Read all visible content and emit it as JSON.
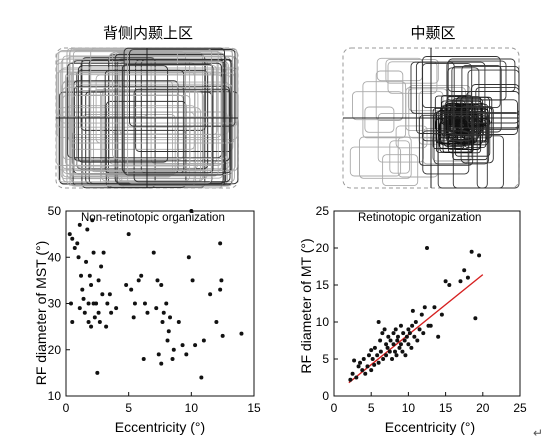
{
  "panels": {
    "dorsal_title": "背侧内颞上区",
    "mt_title": "中颞区",
    "return_mark": "↵"
  },
  "chart_data": [
    {
      "type": "scatter",
      "annotation": "Non-retinotopic organization",
      "xlabel": "Eccentricity (°)",
      "ylabel": "RF diameter of MST (°)",
      "xlim": [
        0,
        15
      ],
      "ylim": [
        10,
        50
      ],
      "xticks": [
        "0",
        "5",
        "10",
        "15"
      ],
      "yticks": [
        "10",
        "20",
        "30",
        "40",
        "50"
      ],
      "points": [
        [
          0.3,
          45
        ],
        [
          0.5,
          44
        ],
        [
          0.7,
          42
        ],
        [
          0.4,
          30
        ],
        [
          0.5,
          26
        ],
        [
          0.9,
          43
        ],
        [
          1.0,
          40
        ],
        [
          1.1,
          29
        ],
        [
          1.1,
          47
        ],
        [
          1.2,
          36
        ],
        [
          1.3,
          33
        ],
        [
          1.4,
          31
        ],
        [
          1.5,
          28
        ],
        [
          1.6,
          39
        ],
        [
          1.7,
          46
        ],
        [
          1.8,
          30
        ],
        [
          1.8,
          26
        ],
        [
          1.9,
          36
        ],
        [
          2.0,
          34
        ],
        [
          2.0,
          25
        ],
        [
          2.1,
          48
        ],
        [
          2.2,
          30
        ],
        [
          2.2,
          41
        ],
        [
          2.3,
          27
        ],
        [
          2.4,
          30
        ],
        [
          2.5,
          15
        ],
        [
          2.6,
          35
        ],
        [
          2.6,
          28
        ],
        [
          2.7,
          26
        ],
        [
          2.8,
          38
        ],
        [
          2.9,
          32
        ],
        [
          3.0,
          41
        ],
        [
          3.2,
          25
        ],
        [
          3.3,
          30
        ],
        [
          3.5,
          32
        ],
        [
          3.6,
          28
        ],
        [
          4.0,
          29
        ],
        [
          4.8,
          34
        ],
        [
          5.0,
          45
        ],
        [
          5.2,
          33
        ],
        [
          5.4,
          27
        ],
        [
          5.5,
          30
        ],
        [
          5.8,
          35
        ],
        [
          6.0,
          36
        ],
        [
          6.2,
          18
        ],
        [
          6.3,
          30
        ],
        [
          6.5,
          28
        ],
        [
          7.0,
          41
        ],
        [
          7.2,
          29
        ],
        [
          7.3,
          35
        ],
        [
          7.4,
          19
        ],
        [
          7.6,
          34
        ],
        [
          7.6,
          17
        ],
        [
          7.7,
          26
        ],
        [
          7.8,
          28
        ],
        [
          8.0,
          30
        ],
        [
          8.1,
          22
        ],
        [
          8.2,
          24
        ],
        [
          8.3,
          27
        ],
        [
          8.5,
          18
        ],
        [
          8.6,
          20
        ],
        [
          9.0,
          26
        ],
        [
          9.3,
          21
        ],
        [
          9.6,
          19
        ],
        [
          9.8,
          40
        ],
        [
          10.0,
          50
        ],
        [
          10.1,
          35
        ],
        [
          10.3,
          21
        ],
        [
          10.8,
          14
        ],
        [
          11.0,
          22
        ],
        [
          11.5,
          32
        ],
        [
          12.0,
          26
        ],
        [
          12.3,
          33
        ],
        [
          12.3,
          43
        ],
        [
          12.4,
          35
        ],
        [
          12.5,
          23
        ],
        [
          14.0,
          23.5
        ]
      ]
    },
    {
      "type": "scatter",
      "annotation": "Retinotopic organization",
      "xlabel": "Eccentricity (°)",
      "ylabel": "RF diameter of MT (°)",
      "xlim": [
        0,
        25
      ],
      "ylim": [
        0,
        25
      ],
      "xticks": [
        "0",
        "5",
        "10",
        "15",
        "20",
        "25"
      ],
      "yticks": [
        "0",
        "5",
        "10",
        "15",
        "20",
        "25"
      ],
      "regression": {
        "x": [
          2,
          20
        ],
        "y": [
          1.8,
          16.4
        ],
        "color": "#d62020"
      },
      "points": [
        [
          2.2,
          2.2
        ],
        [
          2.5,
          3.0
        ],
        [
          2.7,
          4.8
        ],
        [
          3.0,
          2.5
        ],
        [
          3.3,
          4.0
        ],
        [
          3.5,
          4.5
        ],
        [
          3.8,
          3.5
        ],
        [
          4.0,
          5.0
        ],
        [
          4.2,
          3.0
        ],
        [
          4.5,
          4.0
        ],
        [
          4.7,
          5.5
        ],
        [
          5.0,
          3.5
        ],
        [
          5.0,
          6.2
        ],
        [
          5.2,
          5.0
        ],
        [
          5.4,
          4.2
        ],
        [
          5.5,
          6.5
        ],
        [
          5.8,
          5.5
        ],
        [
          6.0,
          10.0
        ],
        [
          6.0,
          4.5
        ],
        [
          6.2,
          7.5
        ],
        [
          6.3,
          6.0
        ],
        [
          6.5,
          8.5
        ],
        [
          6.6,
          5.0
        ],
        [
          6.8,
          9.0
        ],
        [
          7.0,
          7.0
        ],
        [
          7.0,
          5.5
        ],
        [
          7.2,
          6.5
        ],
        [
          7.3,
          8.0
        ],
        [
          7.5,
          6.0
        ],
        [
          7.6,
          7.5
        ],
        [
          7.8,
          5.0
        ],
        [
          8.0,
          8.5
        ],
        [
          8.0,
          7.0
        ],
        [
          8.2,
          6.0
        ],
        [
          8.3,
          9.0
        ],
        [
          8.4,
          5.5
        ],
        [
          8.5,
          7.5
        ],
        [
          8.6,
          8.0
        ],
        [
          8.8,
          6.5
        ],
        [
          9.0,
          9.5
        ],
        [
          9.0,
          7.0
        ],
        [
          9.2,
          6.0
        ],
        [
          9.3,
          8.5
        ],
        [
          9.5,
          7.5
        ],
        [
          9.6,
          5.5
        ],
        [
          9.8,
          8.0
        ],
        [
          10.0,
          9.0
        ],
        [
          10.0,
          7.0
        ],
        [
          10.2,
          8.5
        ],
        [
          10.4,
          6.5
        ],
        [
          10.5,
          9.5
        ],
        [
          10.6,
          11.5
        ],
        [
          10.8,
          8.0
        ],
        [
          11.0,
          10.0
        ],
        [
          11.2,
          7.5
        ],
        [
          11.5,
          9.0
        ],
        [
          11.8,
          11.0
        ],
        [
          12.0,
          8.5
        ],
        [
          12.2,
          12.0
        ],
        [
          12.5,
          20.0
        ],
        [
          12.7,
          9.5
        ],
        [
          13.0,
          9.5
        ],
        [
          13.5,
          12.0
        ],
        [
          14.0,
          8.0
        ],
        [
          14.5,
          11.0
        ],
        [
          15.0,
          15.5
        ],
        [
          15.5,
          15.0
        ],
        [
          17.0,
          15.5
        ],
        [
          17.5,
          17.0
        ],
        [
          18.0,
          16.0
        ],
        [
          18.5,
          19.5
        ],
        [
          19.0,
          10.5
        ],
        [
          19.5,
          19.0
        ]
      ]
    }
  ]
}
